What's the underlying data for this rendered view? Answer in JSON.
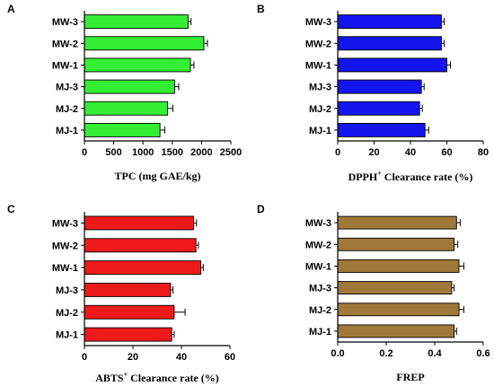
{
  "chart_data": [
    {
      "panel": "A",
      "type": "bar",
      "orientation": "horizontal",
      "categories": [
        "MJ-1",
        "MJ-2",
        "MJ-3",
        "MW-1",
        "MW-2",
        "MW-3"
      ],
      "values": [
        1290,
        1420,
        1540,
        1810,
        2040,
        1770
      ],
      "errors": [
        80,
        90,
        70,
        60,
        60,
        50
      ],
      "xlabel": "TPC (mg GAE/kg)",
      "xlim": [
        0,
        2500
      ],
      "ticks": [
        0,
        500,
        1000,
        1500,
        2000,
        2500
      ],
      "color": "#33ee33",
      "grid": false
    },
    {
      "panel": "B",
      "type": "bar",
      "orientation": "horizontal",
      "categories": [
        "MJ-1",
        "MJ-2",
        "MJ-3",
        "MW-1",
        "MW-2",
        "MW-3"
      ],
      "values": [
        48,
        45,
        46,
        60,
        57,
        57
      ],
      "errors": [
        2,
        1.5,
        1.5,
        2,
        1.5,
        1.5
      ],
      "xlabel_main": "DPPH",
      "xlabel_sup": "+",
      "xlabel_rest": " Clearance rate (%)",
      "xlim": [
        0,
        80
      ],
      "ticks": [
        0,
        20,
        40,
        60,
        80
      ],
      "color": "#1515ee",
      "grid": false
    },
    {
      "panel": "C",
      "type": "bar",
      "orientation": "horizontal",
      "categories": [
        "MJ-1",
        "MJ-2",
        "MJ-3",
        "MW-1",
        "MW-2",
        "MW-3"
      ],
      "values": [
        36,
        37,
        35.5,
        48,
        46,
        45
      ],
      "errors": [
        1,
        4.5,
        1,
        1,
        1,
        1.2
      ],
      "xlabel_main": "ABTS",
      "xlabel_sup": "+",
      "xlabel_rest": " Clearance rate (%)",
      "xlim": [
        0,
        60
      ],
      "ticks": [
        0,
        20,
        40,
        60
      ],
      "color": "#ee1a1a",
      "grid": false
    },
    {
      "panel": "D",
      "type": "bar",
      "orientation": "horizontal",
      "categories": [
        "MJ-1",
        "MJ-2",
        "MJ-3",
        "MW-1",
        "MW-2",
        "MW-3"
      ],
      "values": [
        0.48,
        0.5,
        0.47,
        0.5,
        0.48,
        0.49
      ],
      "errors": [
        0.01,
        0.02,
        0.01,
        0.02,
        0.015,
        0.015
      ],
      "xlabel": "FREP",
      "xlim": [
        0,
        0.6
      ],
      "ticks": [
        0.0,
        0.2,
        0.4,
        0.6
      ],
      "color": "#a0783a",
      "grid": false
    }
  ]
}
